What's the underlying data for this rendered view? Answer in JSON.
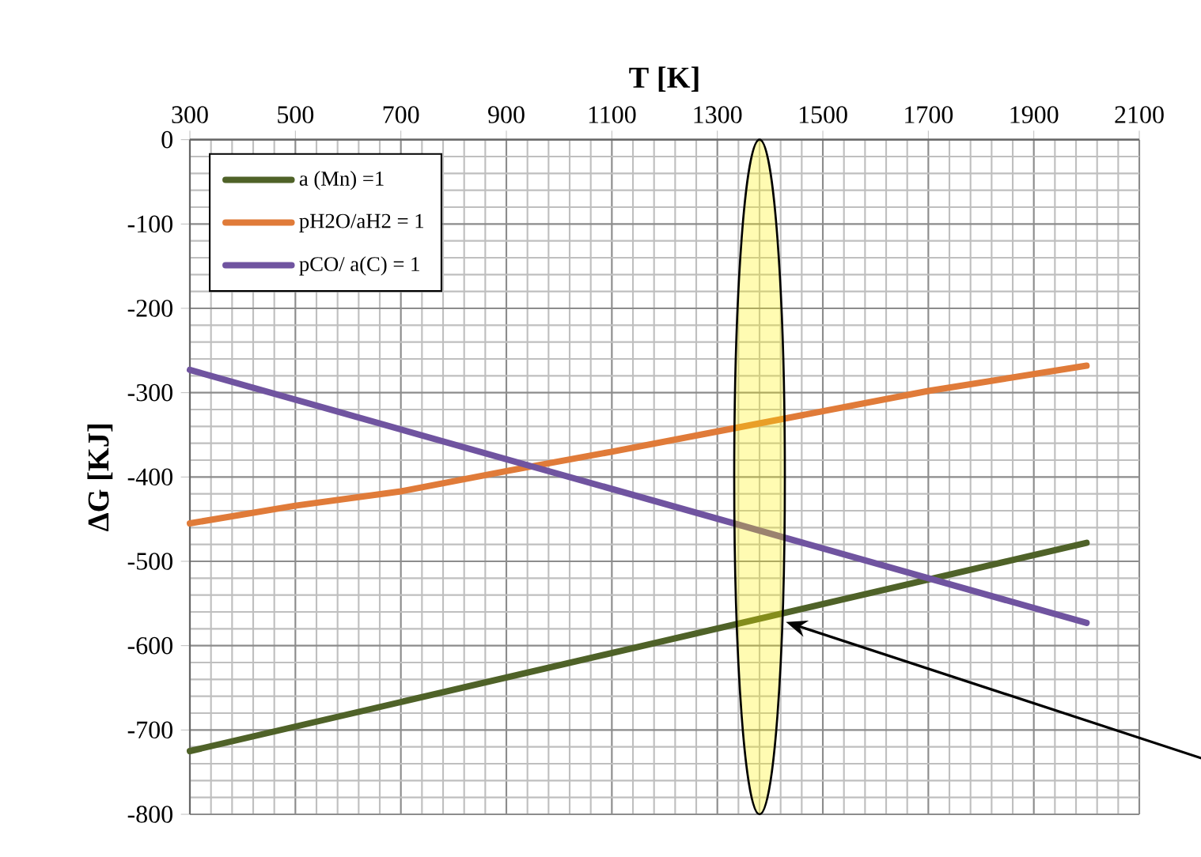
{
  "chart_data": {
    "type": "line",
    "xlabel": "T [K]",
    "ylabel": "ΔG [KJ]",
    "xlim": [
      300,
      2100
    ],
    "xticks": [
      300,
      500,
      700,
      900,
      1100,
      1300,
      1500,
      1700,
      1900,
      2100
    ],
    "ylim": [
      -800,
      0
    ],
    "yticks": [
      0,
      -100,
      -200,
      -300,
      -400,
      -500,
      -600,
      -700,
      -800
    ],
    "grid": true,
    "legend": "top left",
    "marker": "none",
    "line_style": "solid",
    "series": [
      {
        "name": "a (Mn) =1",
        "color": "#4f6228",
        "x": [
          300,
          2000
        ],
        "values": [
          -725,
          -478
        ]
      },
      {
        "name": "pH2O/aH2 = 1",
        "color": "#e07b39",
        "x": [
          300,
          500,
          700,
          900,
          1100,
          1300,
          1500,
          1700,
          2000
        ],
        "values": [
          -455,
          -434,
          -417,
          -393,
          -370,
          -346,
          -322,
          -298,
          -268
        ]
      },
      {
        "name": "pCO/ a(C) = 1",
        "color": "#7054a0",
        "x": [
          300,
          2000
        ],
        "values": [
          -273,
          -573
        ]
      }
    ]
  }
}
